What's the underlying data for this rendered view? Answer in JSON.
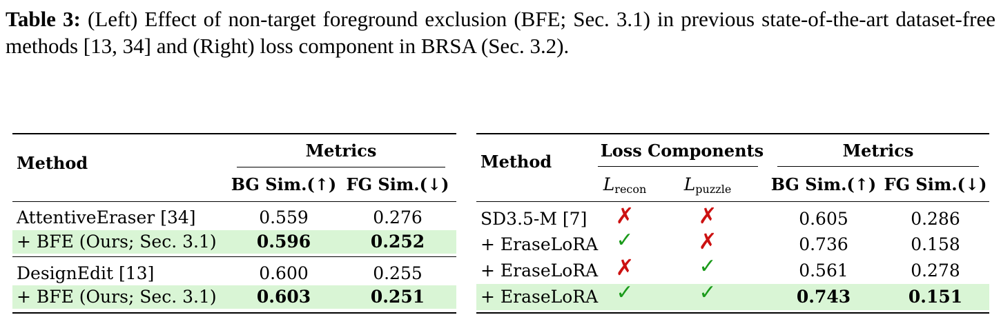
{
  "caption": {
    "label": "Table 3:",
    "text": " (Left) Effect of non-target foreground exclusion (BFE; Sec. 3.1) in previous state-of-the-art dataset-free methods [13, 34] and (Right) loss component in BRSA (Sec. 3.2)."
  },
  "left_table": {
    "method_header": "Method",
    "metrics_header": "Metrics",
    "col_bg": "BG Sim.(↑)",
    "col_fg": "FG Sim.(↓)",
    "rows": [
      {
        "method": "AttentiveEraser [34]",
        "bg": "0.559",
        "fg": "0.276"
      },
      {
        "method": "+ BFE (Ours; Sec. 3.1)",
        "bg": "0.596",
        "fg": "0.252"
      },
      {
        "method": "DesignEdit [13]",
        "bg": "0.600",
        "fg": "0.255"
      },
      {
        "method": "+ BFE (Ours; Sec. 3.1)",
        "bg": "0.603",
        "fg": "0.251"
      }
    ]
  },
  "right_table": {
    "method_header": "Method",
    "loss_header": "Loss Components",
    "metrics_header": "Metrics",
    "loss_recon_main": "L",
    "loss_recon_sub": "recon",
    "loss_puzzle_main": "L",
    "loss_puzzle_sub": "puzzle",
    "col_bg": "BG Sim.(↑)",
    "col_fg": "FG Sim.(↓)",
    "rows": [
      {
        "method": "SD3.5-M [7]",
        "recon": "✗",
        "puzzle": "✗",
        "bg": "0.605",
        "fg": "0.286"
      },
      {
        "method": "+ EraseLoRA",
        "recon": "✓",
        "puzzle": "✗",
        "bg": "0.736",
        "fg": "0.158"
      },
      {
        "method": "+ EraseLoRA",
        "recon": "✗",
        "puzzle": "✓",
        "bg": "0.561",
        "fg": "0.278"
      },
      {
        "method": "+ EraseLoRA",
        "recon": "✓",
        "puzzle": "✓",
        "bg": "0.743",
        "fg": "0.151"
      }
    ]
  },
  "colors": {
    "highlight": "#d9f5d5",
    "cross": "#cc1111",
    "check": "#1a9a1a"
  }
}
